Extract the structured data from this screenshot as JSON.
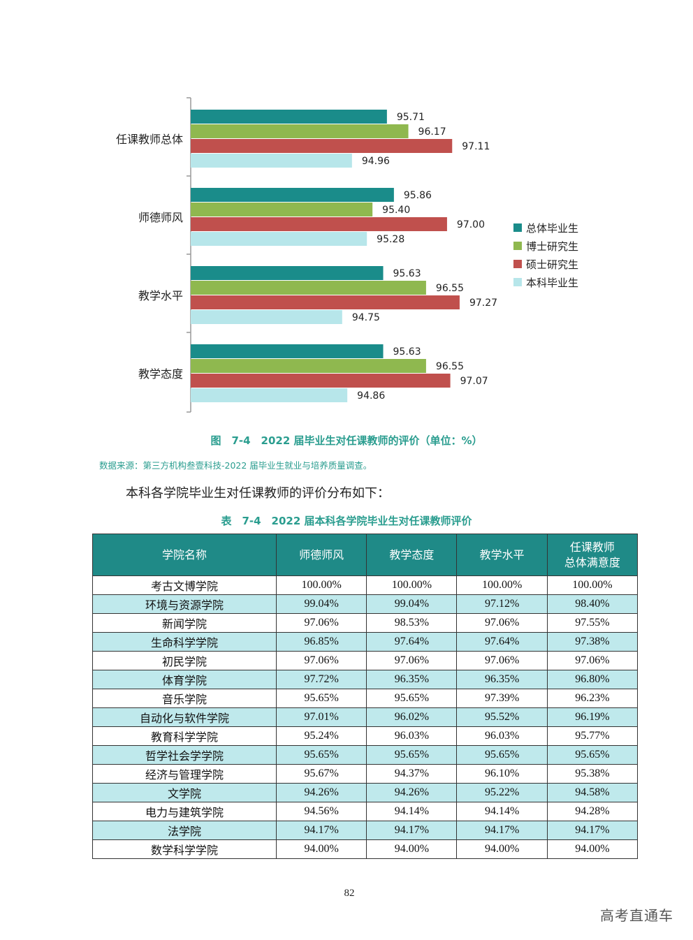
{
  "chart_data": {
    "type": "bar",
    "orientation": "horizontal",
    "categories": [
      "任课教师总体",
      "师德师风",
      "教学水平",
      "教学态度"
    ],
    "series": [
      {
        "name": "总体毕业生",
        "color": "#1a8c8a",
        "values": [
          95.71,
          95.86,
          95.63,
          95.63
        ]
      },
      {
        "name": "博士研究生",
        "color": "#8fb84f",
        "values": [
          96.17,
          95.4,
          96.55,
          96.55
        ]
      },
      {
        "name": "硕士研究生",
        "color": "#c0504d",
        "values": [
          97.11,
          97.0,
          97.27,
          97.07
        ]
      },
      {
        "name": "本科毕业生",
        "color": "#b7e6ea",
        "values": [
          94.96,
          95.28,
          94.75,
          94.86
        ]
      }
    ],
    "value_labels": [
      [
        "95.71",
        "96.17",
        "97.11",
        "94.96"
      ],
      [
        "95.86",
        "95.40",
        "97.00",
        "95.28"
      ],
      [
        "95.63",
        "96.55",
        "97.27",
        "94.75"
      ],
      [
        "95.63",
        "96.55",
        "97.07",
        "94.86"
      ]
    ],
    "xlim": [
      91.5,
      98.5
    ],
    "legend_position": "right"
  },
  "figure": {
    "caption": "图　7-4　2022 届毕业生对任课教师的评价（单位：%）",
    "source": "数据来源：第三方机构叁壹科技-2022 届毕业生就业与培养质量调查。"
  },
  "intro_text": "本科各学院毕业生对任课教师的评价分布如下：",
  "table": {
    "caption": "表　7-4　2022 届本科各学院毕业生对任课教师评价",
    "headers": [
      "学院名称",
      "师德师风",
      "教学态度",
      "教学水平",
      "任课教师",
      "总体满意度"
    ],
    "rows": [
      [
        "考古文博学院",
        "100.00%",
        "100.00%",
        "100.00%",
        "100.00%"
      ],
      [
        "环境与资源学院",
        "99.04%",
        "99.04%",
        "97.12%",
        "98.40%"
      ],
      [
        "新闻学院",
        "97.06%",
        "98.53%",
        "97.06%",
        "97.55%"
      ],
      [
        "生命科学学院",
        "96.85%",
        "97.64%",
        "97.64%",
        "97.38%"
      ],
      [
        "初民学院",
        "97.06%",
        "97.06%",
        "97.06%",
        "97.06%"
      ],
      [
        "体育学院",
        "97.72%",
        "96.35%",
        "96.35%",
        "96.80%"
      ],
      [
        "音乐学院",
        "95.65%",
        "95.65%",
        "97.39%",
        "96.23%"
      ],
      [
        "自动化与软件学院",
        "97.01%",
        "96.02%",
        "95.52%",
        "96.19%"
      ],
      [
        "教育科学学院",
        "95.24%",
        "96.03%",
        "96.03%",
        "95.77%"
      ],
      [
        "哲学社会学学院",
        "95.65%",
        "95.65%",
        "95.65%",
        "95.65%"
      ],
      [
        "经济与管理学院",
        "95.67%",
        "94.37%",
        "96.10%",
        "95.38%"
      ],
      [
        "文学院",
        "94.26%",
        "94.26%",
        "95.22%",
        "94.58%"
      ],
      [
        "电力与建筑学院",
        "94.56%",
        "94.14%",
        "94.14%",
        "94.28%"
      ],
      [
        "法学院",
        "94.17%",
        "94.17%",
        "94.17%",
        "94.17%"
      ],
      [
        "数学科学学院",
        "94.00%",
        "94.00%",
        "94.00%",
        "94.00%"
      ]
    ]
  },
  "page_number": "82",
  "watermark": "高考直通车"
}
